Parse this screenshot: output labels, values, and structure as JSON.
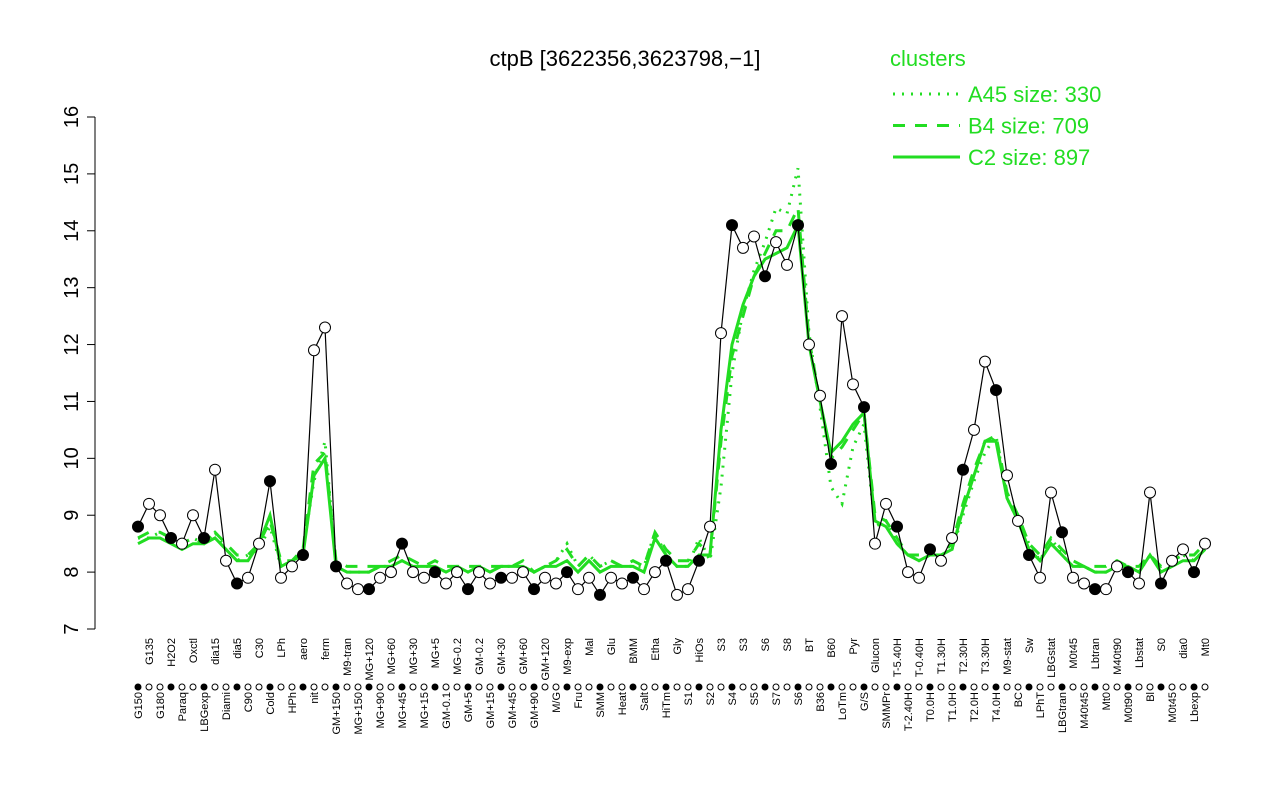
{
  "chart_data": {
    "type": "line",
    "title": "ctpB [3622356,3623798,−1]",
    "legend_title": "clusters",
    "categories": [
      "G150",
      "G135",
      "G180",
      "H2O2",
      "Paraq",
      "Oxctl",
      "LBGexp",
      "dia15",
      "Diami",
      "dia5",
      "C90",
      "C30",
      "Cold",
      "LPh",
      "HPh",
      "aero",
      "nit",
      "ferm",
      "GM+150",
      "M9-tran",
      "MG+150",
      "MG+120",
      "MG+90",
      "MG+60",
      "MG+45",
      "MG+30",
      "MG+15",
      "MG+5",
      "GM-0.1",
      "MG-0.2",
      "GM+5",
      "GM-0.2",
      "GM+15",
      "GM+30",
      "GM+45",
      "GM+60",
      "GM+90",
      "GM+120",
      "M/G",
      "M9-exp",
      "Fru",
      "Mal",
      "SMM",
      "Glu",
      "Heat",
      "BMM",
      "Salt",
      "Etha",
      "HiTm",
      "Gly",
      "S1",
      "HiOs",
      "S2",
      "S3",
      "S4",
      "S3",
      "S5",
      "S6",
      "S7",
      "S8",
      "S6",
      "BT",
      "B36",
      "B60",
      "LoTm",
      "Pyr",
      "G/S",
      "Glucon",
      "SMMPr",
      "T-5.40H",
      "T-2.40H",
      "T-0.40H",
      "T0.0H",
      "T1.30H",
      "T1.0H",
      "T2.30H",
      "T2.0H",
      "T3.30H",
      "T4.0H",
      "M9-stat",
      "BC",
      "Sw",
      "LPhT",
      "LBGstat",
      "LBGtran",
      "M0t45",
      "M40t45",
      "Lbtran",
      "Mt0",
      "M40t90",
      "M0t90",
      "Lbstat",
      "Bl",
      "S0",
      "M0t45",
      "dia0",
      "Lbexp",
      "Mt0"
    ],
    "values": [
      8.8,
      9.2,
      9.0,
      8.6,
      8.5,
      9.0,
      8.6,
      9.8,
      8.2,
      7.8,
      7.9,
      8.5,
      9.6,
      7.9,
      8.1,
      8.3,
      11.9,
      12.3,
      8.1,
      7.8,
      7.7,
      7.7,
      7.9,
      8.0,
      8.5,
      8.0,
      7.9,
      8.0,
      7.8,
      8.0,
      7.7,
      8.0,
      7.8,
      7.9,
      7.9,
      8.0,
      7.7,
      7.9,
      7.8,
      8.0,
      7.7,
      7.9,
      7.6,
      7.9,
      7.8,
      7.9,
      7.7,
      8.0,
      8.2,
      7.6,
      7.7,
      8.2,
      8.8,
      12.2,
      14.1,
      13.7,
      13.9,
      13.2,
      13.8,
      13.4,
      14.1,
      12.0,
      11.1,
      9.9,
      12.5,
      11.3,
      10.9,
      8.5,
      9.2,
      8.8,
      8.0,
      7.9,
      8.4,
      8.2,
      8.6,
      9.8,
      10.5,
      11.7,
      11.2,
      9.7,
      8.9,
      8.3,
      7.9,
      9.4,
      8.7,
      7.9,
      7.8,
      7.7,
      7.7,
      8.1,
      8.0,
      7.8,
      9.4,
      7.8,
      8.2,
      8.4,
      8.0,
      8.5
    ],
    "series": [
      {
        "name": "A45 size: 330",
        "style": "dotted",
        "color": "#22dd22",
        "values": [
          8.6,
          8.6,
          8.7,
          8.6,
          8.5,
          8.6,
          8.5,
          8.7,
          8.4,
          8.2,
          8.3,
          8.4,
          8.8,
          8.1,
          8.2,
          8.4,
          9.6,
          10.3,
          8.1,
          8.0,
          8.0,
          8.0,
          8.1,
          8.1,
          8.2,
          8.1,
          8.1,
          8.1,
          8.0,
          8.1,
          8.0,
          8.1,
          8.0,
          8.1,
          8.1,
          8.1,
          8.0,
          8.1,
          8.2,
          8.5,
          8.1,
          8.3,
          8.1,
          8.2,
          8.1,
          8.1,
          8.1,
          8.7,
          8.3,
          8.1,
          8.1,
          8.6,
          8.2,
          9.5,
          11.5,
          12.6,
          13.3,
          13.8,
          14.4,
          14.3,
          15.1,
          12.2,
          10.9,
          9.5,
          9.2,
          10.2,
          10.6,
          8.8,
          8.9,
          8.5,
          8.3,
          8.2,
          8.3,
          8.3,
          8.4,
          9.0,
          9.6,
          10.1,
          10.4,
          9.3,
          8.9,
          8.5,
          8.2,
          8.6,
          8.3,
          8.1,
          8.1,
          8.0,
          8.0,
          8.1,
          8.1,
          8.0,
          8.3,
          8.1,
          8.2,
          8.3,
          8.2,
          8.4
        ]
      },
      {
        "name": "B4 size: 709",
        "style": "dashed",
        "color": "#22dd22",
        "values": [
          8.6,
          8.7,
          8.7,
          8.6,
          8.5,
          8.6,
          8.5,
          8.7,
          8.5,
          8.3,
          8.3,
          8.5,
          8.9,
          8.2,
          8.2,
          8.4,
          9.9,
          10.1,
          8.2,
          8.1,
          8.1,
          8.1,
          8.1,
          8.2,
          8.3,
          8.2,
          8.1,
          8.2,
          8.1,
          8.1,
          8.1,
          8.1,
          8.1,
          8.1,
          8.1,
          8.2,
          8.0,
          8.1,
          8.2,
          8.4,
          8.1,
          8.3,
          8.1,
          8.2,
          8.1,
          8.2,
          8.1,
          8.7,
          8.4,
          8.2,
          8.2,
          8.5,
          8.3,
          10.3,
          11.8,
          12.5,
          13.2,
          13.6,
          14.0,
          14.0,
          14.4,
          12.1,
          11.0,
          10.0,
          10.2,
          10.5,
          10.8,
          9.0,
          8.9,
          8.6,
          8.3,
          8.3,
          8.3,
          8.3,
          8.5,
          9.2,
          9.8,
          10.3,
          10.4,
          9.4,
          9.0,
          8.5,
          8.3,
          8.6,
          8.4,
          8.2,
          8.1,
          8.1,
          8.1,
          8.2,
          8.1,
          8.1,
          8.3,
          8.1,
          8.2,
          8.3,
          8.3,
          8.5
        ]
      },
      {
        "name": "C2 size: 897",
        "style": "solid",
        "color": "#22dd22",
        "values": [
          8.5,
          8.6,
          8.6,
          8.5,
          8.4,
          8.5,
          8.5,
          8.6,
          8.4,
          8.2,
          8.2,
          8.5,
          9.0,
          8.1,
          8.2,
          8.3,
          9.7,
          10.0,
          8.1,
          8.0,
          8.0,
          8.0,
          8.1,
          8.1,
          8.2,
          8.1,
          8.1,
          8.1,
          8.0,
          8.1,
          8.0,
          8.1,
          8.0,
          8.1,
          8.1,
          8.1,
          8.0,
          8.1,
          8.1,
          8.2,
          8.0,
          8.2,
          8.0,
          8.1,
          8.1,
          8.1,
          8.0,
          8.6,
          8.3,
          8.1,
          8.1,
          8.3,
          8.3,
          10.5,
          12.0,
          12.7,
          13.2,
          13.5,
          13.6,
          13.7,
          14.1,
          12.0,
          11.0,
          10.1,
          10.3,
          10.6,
          10.8,
          8.9,
          8.8,
          8.5,
          8.3,
          8.2,
          8.3,
          8.3,
          8.4,
          9.1,
          9.7,
          10.3,
          10.3,
          9.3,
          8.9,
          8.4,
          8.2,
          8.5,
          8.3,
          8.1,
          8.1,
          8.0,
          8.0,
          8.1,
          8.1,
          8.0,
          8.3,
          8.0,
          8.1,
          8.2,
          8.2,
          8.4
        ]
      }
    ],
    "ylim": [
      7,
      16
    ],
    "yticks": [
      7,
      8,
      9,
      10,
      11,
      12,
      13,
      14,
      15,
      16
    ]
  }
}
